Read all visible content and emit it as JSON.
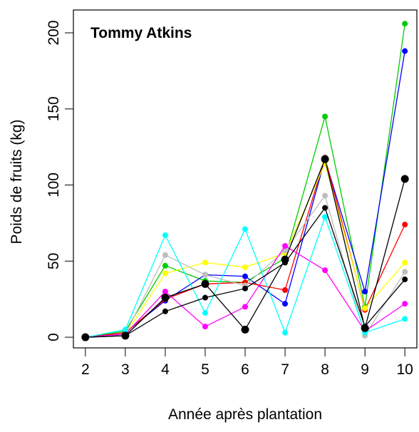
{
  "chart_data": {
    "type": "line",
    "title": "Tommy Atkins",
    "xlabel": "Année après plantation",
    "ylabel": "Poids de fruits (kg)",
    "x": [
      2,
      3,
      4,
      5,
      6,
      7,
      8,
      9,
      10
    ],
    "xlim": [
      1.7,
      10.3
    ],
    "ylim": [
      -7,
      215
    ],
    "yticks": [
      0,
      50,
      100,
      150,
      200
    ],
    "grid": false,
    "legend": "none",
    "series": [
      {
        "color": "#00cc00",
        "values": [
          0,
          4,
          47,
          37,
          36,
          52,
          145,
          20,
          206
        ]
      },
      {
        "color": "#0000ff",
        "values": [
          0,
          3,
          24,
          41,
          40,
          22,
          117,
          30,
          188
        ]
      },
      {
        "color": "#ff0000",
        "values": [
          0,
          3,
          25,
          35,
          36,
          31,
          118,
          18,
          74
        ]
      },
      {
        "color": "#ffff00",
        "values": [
          0,
          2,
          42,
          49,
          46,
          55,
          114,
          19,
          49
        ]
      },
      {
        "color": "#bebebe",
        "values": [
          0,
          2,
          54,
          41,
          34,
          57,
          93,
          1,
          43
        ]
      },
      {
        "color": "#ff00ff",
        "values": [
          0,
          2,
          30,
          7,
          20,
          60,
          44,
          4,
          22
        ]
      },
      {
        "color": "#00ffff",
        "values": [
          0,
          5,
          67,
          16,
          71,
          3,
          79,
          3,
          12
        ]
      },
      {
        "color": "#000000",
        "values": [
          0,
          1,
          26,
          35,
          5,
          51,
          117,
          6,
          104
        ],
        "marker": "large"
      },
      {
        "color": "#000000",
        "values": [
          0,
          1,
          17,
          26,
          32,
          49,
          85,
          7,
          38
        ]
      }
    ]
  }
}
